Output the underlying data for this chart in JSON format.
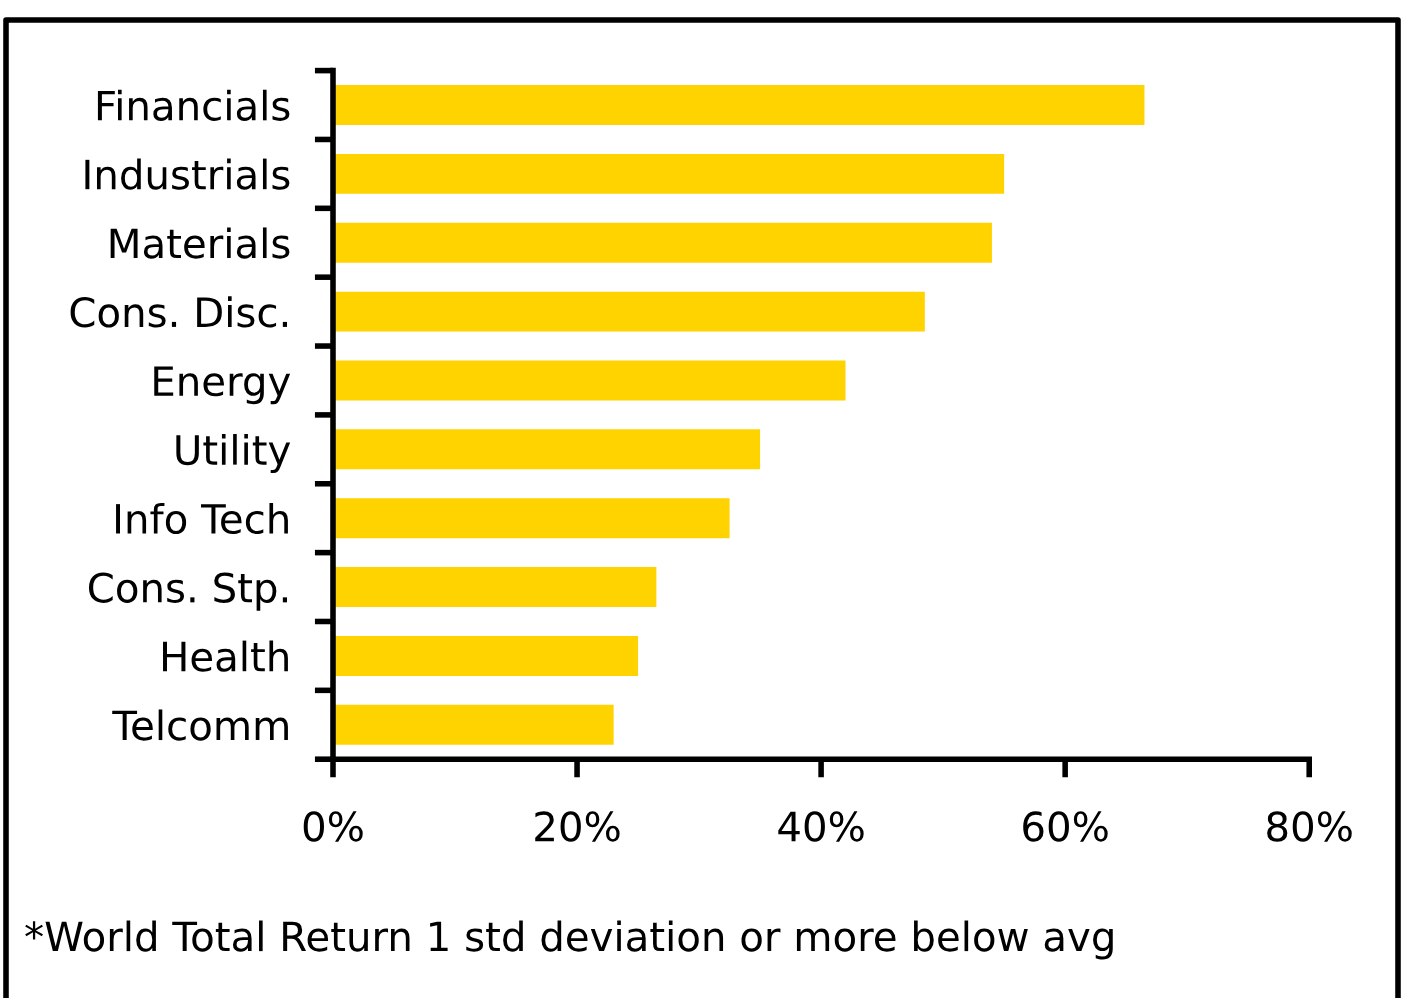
{
  "chart_data": {
    "type": "bar",
    "orientation": "horizontal",
    "categories": [
      "Financials",
      "Industrials",
      "Materials",
      "Cons. Disc.",
      "Energy",
      "Utility",
      "Info Tech",
      "Cons. Stp.",
      "Health",
      "Telcomm"
    ],
    "values": [
      66.5,
      55,
      54,
      48.5,
      42,
      35,
      32.5,
      26.5,
      25,
      23
    ],
    "color": "#ffd300",
    "xlim": [
      0,
      80
    ],
    "xticks": [
      {
        "value": 0,
        "label": "0%"
      },
      {
        "value": 20,
        "label": "20%"
      },
      {
        "value": 40,
        "label": "40%"
      },
      {
        "value": 60,
        "label": "60%"
      },
      {
        "value": 80,
        "label": "80%"
      }
    ],
    "annotations": [
      "*World Total Return 1 std deviation or more below avg"
    ]
  }
}
